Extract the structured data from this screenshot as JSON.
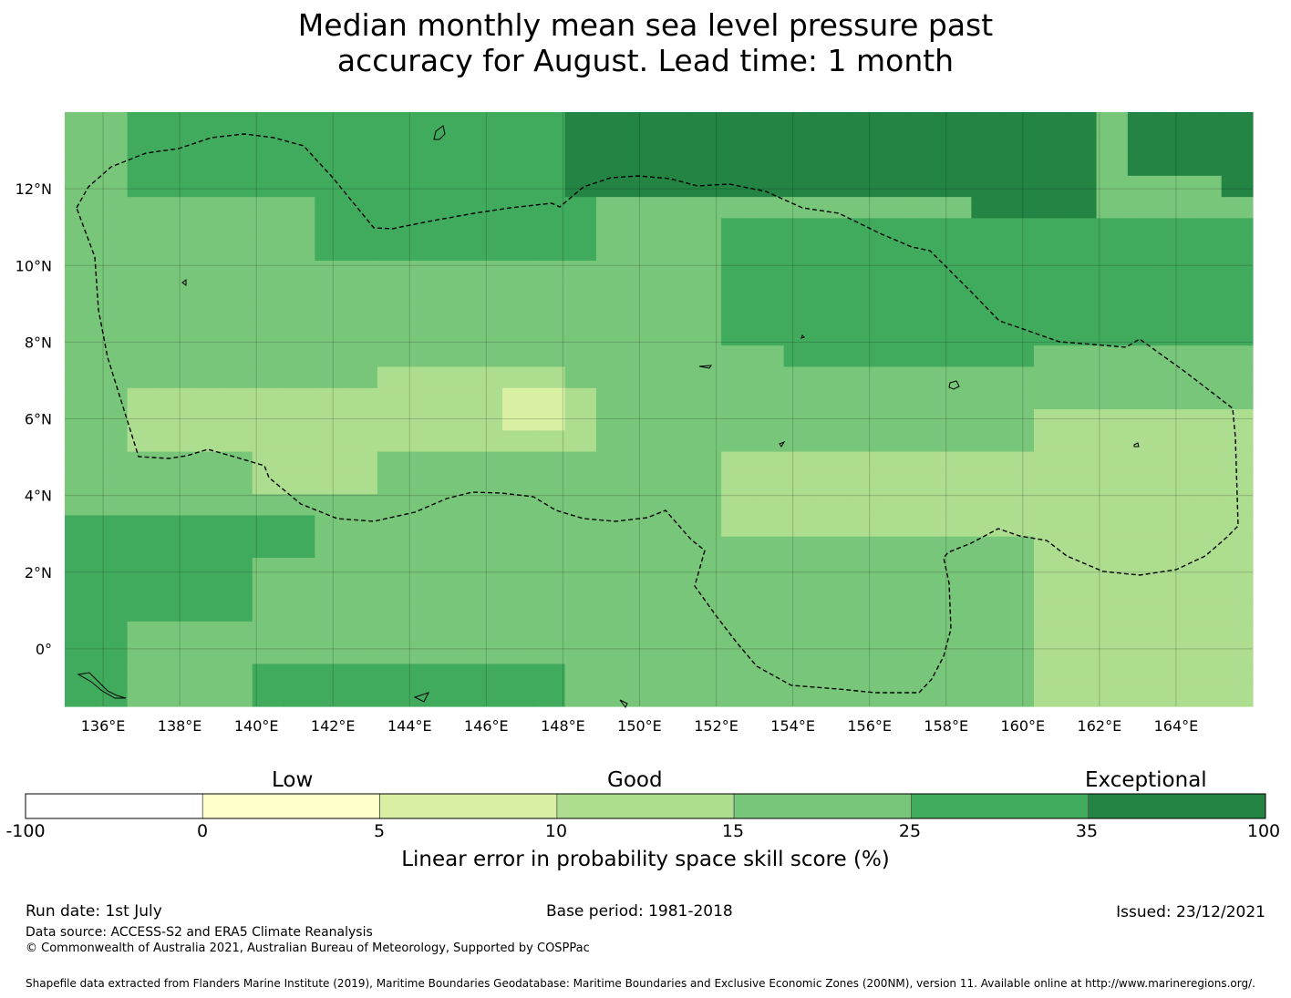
{
  "title": {
    "line1": "Median monthly mean sea level pressure past",
    "line2": "accuracy for August. Lead time: 1 month"
  },
  "map": {
    "lon_range": [
      135,
      166
    ],
    "lat_range": [
      -1.5,
      14
    ],
    "lon_ticks": [
      "136°E",
      "138°E",
      "140°E",
      "142°E",
      "144°E",
      "146°E",
      "148°E",
      "150°E",
      "152°E",
      "154°E",
      "156°E",
      "158°E",
      "160°E",
      "162°E",
      "164°E"
    ],
    "lat_ticks": [
      "12°N",
      "10°N",
      "8°N",
      "6°N",
      "4°N",
      "2°N",
      "0°"
    ],
    "gridlines": true,
    "boundary": "dashed-eez-outline"
  },
  "colorbar": {
    "categories": [
      "Low",
      "Good",
      "Exceptional"
    ],
    "ticks": [
      "-100",
      "0",
      "5",
      "10",
      "15",
      "25",
      "35",
      "100"
    ],
    "colors": [
      "#ffffff",
      "#ffffcc",
      "#d9f0a3",
      "#addd8e",
      "#78c679",
      "#41ab5d",
      "#238443"
    ],
    "label": "Linear error in probability space skill score (%)"
  },
  "footer": {
    "run_date": "Run date: 1st July",
    "base_period": "Base period: 1981-2018",
    "issued": "Issued: 23/12/2021",
    "data_source": "Data source: ACCESS-S2 and ERA5 Climate Reanalysis",
    "copyright": "© Commonwealth of Australia 2021, Australian Bureau of Meteorology, Supported by COSPPac",
    "shapefile": "Shapefile data extracted from Flanders Marine Institute (2019), Maritime Boundaries Geodatabase: Maritime Boundaries and Exclusive Economic Zones (200NM), version 11. Available online at http://www.marineregions.org/."
  }
}
